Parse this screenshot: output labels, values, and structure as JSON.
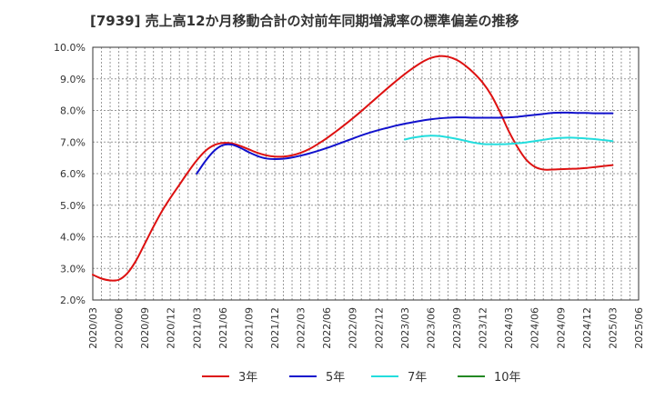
{
  "title": "[7939]  売上高12か月移動合計の対前年同期増減率の標準偏差の推移",
  "chart_data": {
    "type": "line",
    "title": "[7939]  売上高12か月移動合計の対前年同期増減率の標準偏差の推移",
    "xlabel": "",
    "ylabel": "",
    "ylim": [
      2.0,
      10.0
    ],
    "yticks": [
      "2.0%",
      "3.0%",
      "4.0%",
      "5.0%",
      "6.0%",
      "7.0%",
      "8.0%",
      "9.0%",
      "10.0%"
    ],
    "xticks": [
      "2020/03",
      "2020/06",
      "2020/09",
      "2020/12",
      "2021/03",
      "2021/06",
      "2021/09",
      "2021/12",
      "2022/03",
      "2022/06",
      "2022/09",
      "2022/12",
      "2023/03",
      "2023/06",
      "2023/09",
      "2023/12",
      "2024/03",
      "2024/06",
      "2024/09",
      "2024/12",
      "2025/03",
      "2025/06"
    ],
    "grid": true,
    "legend_position": "bottom",
    "series": [
      {
        "name": "3年",
        "color": "#dd1111",
        "points": [
          [
            "2020/03",
            2.8
          ],
          [
            "2020/04",
            2.68
          ],
          [
            "2020/05",
            2.62
          ],
          [
            "2020/06",
            2.64
          ],
          [
            "2020/07",
            2.85
          ],
          [
            "2020/08",
            3.25
          ],
          [
            "2020/09",
            3.78
          ],
          [
            "2020/10",
            4.32
          ],
          [
            "2020/11",
            4.82
          ],
          [
            "2020/12",
            5.25
          ],
          [
            "2021/01",
            5.65
          ],
          [
            "2021/02",
            6.05
          ],
          [
            "2021/03",
            6.42
          ],
          [
            "2021/04",
            6.72
          ],
          [
            "2021/05",
            6.9
          ],
          [
            "2021/06",
            6.97
          ],
          [
            "2021/07",
            6.96
          ],
          [
            "2021/08",
            6.88
          ],
          [
            "2021/09",
            6.77
          ],
          [
            "2021/10",
            6.66
          ],
          [
            "2021/11",
            6.58
          ],
          [
            "2021/12",
            6.54
          ],
          [
            "2022/01",
            6.54
          ],
          [
            "2022/02",
            6.58
          ],
          [
            "2022/03",
            6.66
          ],
          [
            "2022/04",
            6.78
          ],
          [
            "2022/05",
            6.94
          ],
          [
            "2022/06",
            7.12
          ],
          [
            "2022/07",
            7.32
          ],
          [
            "2022/08",
            7.53
          ],
          [
            "2022/09",
            7.75
          ],
          [
            "2022/10",
            7.98
          ],
          [
            "2022/11",
            8.22
          ],
          [
            "2022/12",
            8.46
          ],
          [
            "2023/01",
            8.7
          ],
          [
            "2023/02",
            8.93
          ],
          [
            "2023/03",
            9.15
          ],
          [
            "2023/04",
            9.35
          ],
          [
            "2023/05",
            9.53
          ],
          [
            "2023/06",
            9.66
          ],
          [
            "2023/07",
            9.72
          ],
          [
            "2023/08",
            9.7
          ],
          [
            "2023/09",
            9.6
          ],
          [
            "2023/10",
            9.42
          ],
          [
            "2023/11",
            9.18
          ],
          [
            "2023/12",
            8.88
          ],
          [
            "2024/01",
            8.48
          ],
          [
            "2024/02",
            7.95
          ],
          [
            "2024/03",
            7.35
          ],
          [
            "2024/04",
            6.85
          ],
          [
            "2024/05",
            6.45
          ],
          [
            "2024/06",
            6.22
          ],
          [
            "2024/07",
            6.13
          ],
          [
            "2024/08",
            6.13
          ],
          [
            "2024/09",
            6.14
          ],
          [
            "2024/10",
            6.15
          ],
          [
            "2024/11",
            6.16
          ],
          [
            "2024/12",
            6.18
          ],
          [
            "2025/01",
            6.21
          ],
          [
            "2025/02",
            6.24
          ],
          [
            "2025/03",
            6.27
          ]
        ]
      },
      {
        "name": "5年",
        "color": "#1111cc",
        "points": [
          [
            "2021/03",
            6.0
          ],
          [
            "2021/04",
            6.4
          ],
          [
            "2021/05",
            6.72
          ],
          [
            "2021/06",
            6.9
          ],
          [
            "2021/07",
            6.92
          ],
          [
            "2021/08",
            6.82
          ],
          [
            "2021/09",
            6.68
          ],
          [
            "2021/10",
            6.56
          ],
          [
            "2021/11",
            6.48
          ],
          [
            "2021/12",
            6.46
          ],
          [
            "2022/01",
            6.47
          ],
          [
            "2022/02",
            6.51
          ],
          [
            "2022/03",
            6.57
          ],
          [
            "2022/04",
            6.64
          ],
          [
            "2022/05",
            6.72
          ],
          [
            "2022/06",
            6.81
          ],
          [
            "2022/07",
            6.91
          ],
          [
            "2022/08",
            7.01
          ],
          [
            "2022/09",
            7.11
          ],
          [
            "2022/10",
            7.21
          ],
          [
            "2022/11",
            7.3
          ],
          [
            "2022/12",
            7.38
          ],
          [
            "2023/01",
            7.45
          ],
          [
            "2023/02",
            7.52
          ],
          [
            "2023/03",
            7.58
          ],
          [
            "2023/04",
            7.63
          ],
          [
            "2023/05",
            7.68
          ],
          [
            "2023/06",
            7.72
          ],
          [
            "2023/07",
            7.75
          ],
          [
            "2023/08",
            7.77
          ],
          [
            "2023/09",
            7.78
          ],
          [
            "2023/10",
            7.78
          ],
          [
            "2023/11",
            7.77
          ],
          [
            "2023/12",
            7.77
          ],
          [
            "2024/01",
            7.77
          ],
          [
            "2024/02",
            7.77
          ],
          [
            "2024/03",
            7.78
          ],
          [
            "2024/04",
            7.8
          ],
          [
            "2024/05",
            7.83
          ],
          [
            "2024/06",
            7.86
          ],
          [
            "2024/07",
            7.89
          ],
          [
            "2024/08",
            7.92
          ],
          [
            "2024/09",
            7.93
          ],
          [
            "2024/10",
            7.93
          ],
          [
            "2024/11",
            7.92
          ],
          [
            "2024/12",
            7.92
          ],
          [
            "2025/01",
            7.91
          ],
          [
            "2025/02",
            7.91
          ],
          [
            "2025/03",
            7.91
          ]
        ]
      },
      {
        "name": "7年",
        "color": "#22dddd",
        "points": [
          [
            "2023/03",
            7.08
          ],
          [
            "2023/04",
            7.14
          ],
          [
            "2023/05",
            7.18
          ],
          [
            "2023/06",
            7.2
          ],
          [
            "2023/07",
            7.19
          ],
          [
            "2023/08",
            7.15
          ],
          [
            "2023/09",
            7.1
          ],
          [
            "2023/10",
            7.04
          ],
          [
            "2023/11",
            6.98
          ],
          [
            "2023/12",
            6.94
          ],
          [
            "2024/01",
            6.93
          ],
          [
            "2024/02",
            6.93
          ],
          [
            "2024/03",
            6.94
          ],
          [
            "2024/04",
            6.96
          ],
          [
            "2024/05",
            6.99
          ],
          [
            "2024/06",
            7.03
          ],
          [
            "2024/07",
            7.07
          ],
          [
            "2024/08",
            7.11
          ],
          [
            "2024/09",
            7.13
          ],
          [
            "2024/10",
            7.14
          ],
          [
            "2024/11",
            7.13
          ],
          [
            "2024/12",
            7.11
          ],
          [
            "2025/01",
            7.09
          ],
          [
            "2025/02",
            7.06
          ],
          [
            "2025/03",
            7.03
          ]
        ]
      },
      {
        "name": "10年",
        "color": "#228822",
        "points": []
      }
    ]
  }
}
